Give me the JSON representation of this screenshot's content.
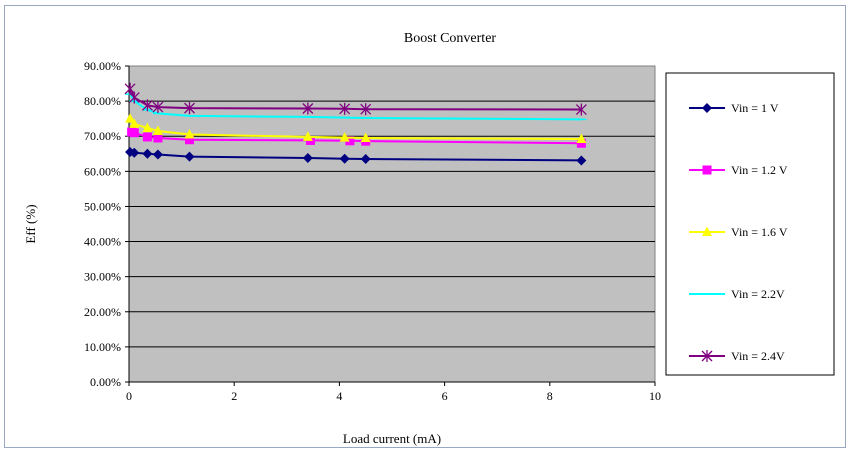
{
  "chart_data": {
    "type": "line",
    "title": "Boost Converter",
    "xlabel": "Load current (mA)",
    "ylabel": "Eff (%)",
    "xlim": [
      0,
      10
    ],
    "ylim": [
      0,
      90
    ],
    "x_ticks": [
      "0",
      "2",
      "4",
      "6",
      "8",
      "10"
    ],
    "y_ticks": [
      "0.00%",
      "10.00%",
      "20.00%",
      "30.00%",
      "40.00%",
      "50.00%",
      "60.00%",
      "70.00%",
      "80.00%",
      "90.00%"
    ],
    "grid": "horizontal",
    "plot_background": "#c0c0c0",
    "legend_position": "right",
    "series": [
      {
        "name": "Vin = 1 V",
        "color": "#000080",
        "marker": "diamond",
        "x": [
          0.02,
          0.1,
          0.35,
          0.55,
          1.15,
          3.4,
          4.1,
          4.5,
          8.6
        ],
        "y": [
          65.5,
          65.3,
          65.0,
          64.8,
          64.2,
          63.8,
          63.6,
          63.5,
          63.1
        ]
      },
      {
        "name": "Vin = 1.2 V",
        "color": "#ff00ff",
        "marker": "square",
        "x": [
          0.05,
          0.1,
          0.35,
          0.55,
          1.15,
          3.45,
          4.2,
          4.5,
          8.6
        ],
        "y": [
          71.2,
          71.0,
          69.8,
          69.5,
          69.0,
          68.8,
          68.7,
          68.6,
          68.0
        ]
      },
      {
        "name": "Vin = 1.6 V",
        "color": "#ffff00",
        "marker": "triangle",
        "x": [
          0.02,
          0.1,
          0.35,
          0.55,
          1.15,
          3.4,
          4.1,
          4.5,
          8.6
        ],
        "y": [
          75.0,
          73.5,
          72.3,
          71.5,
          70.5,
          69.8,
          69.6,
          69.5,
          69.2
        ]
      },
      {
        "name": "Vin = 2.2V",
        "color": "#00ffff",
        "marker": "cross",
        "x": [
          0.02,
          0.1,
          0.35,
          0.55,
          1.15,
          3.4,
          4.1,
          4.5,
          8.6
        ],
        "y": [
          82.0,
          80.0,
          77.5,
          76.5,
          75.8,
          75.5,
          75.3,
          75.2,
          74.8
        ]
      },
      {
        "name": "Vin = 2.4V",
        "color": "#800080",
        "marker": "asterisk",
        "x": [
          0.02,
          0.1,
          0.35,
          0.55,
          1.15,
          3.4,
          4.1,
          4.5,
          8.6
        ],
        "y": [
          83.5,
          81.0,
          78.8,
          78.3,
          78.0,
          77.9,
          77.8,
          77.7,
          77.6
        ]
      }
    ]
  }
}
